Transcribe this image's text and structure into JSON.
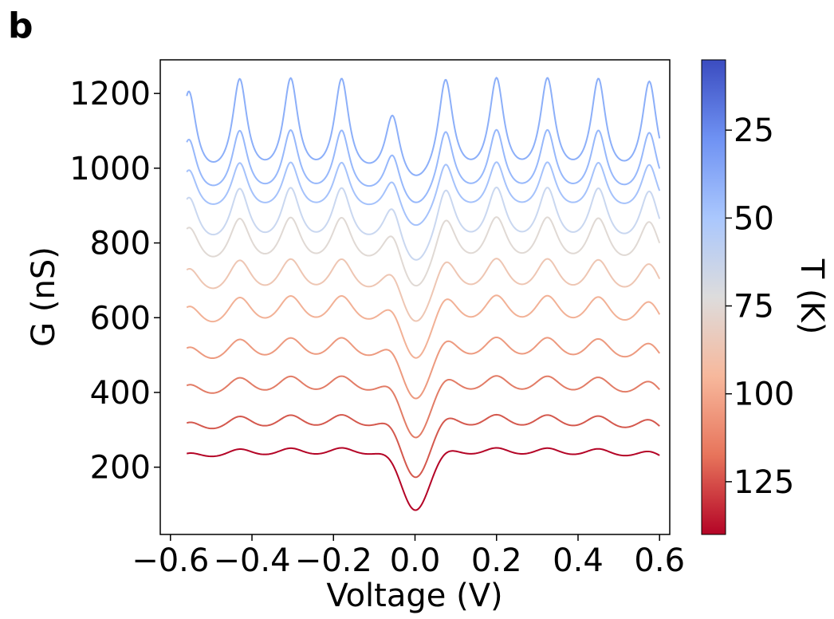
{
  "panel_label": "b",
  "chart_data": {
    "type": "line",
    "xlabel": "Voltage (V)",
    "ylabel": "G (nS)",
    "xlim": [
      -0.625,
      0.625
    ],
    "ylim": [
      20,
      1290
    ],
    "x_ticks": [
      -0.6,
      -0.4,
      -0.2,
      0.0,
      0.2,
      0.4,
      0.6
    ],
    "x_tick_labels": [
      "−0.6",
      "−0.4",
      "−0.2",
      "0.0",
      "0.2",
      "0.4",
      "0.6"
    ],
    "y_ticks": [
      200,
      400,
      600,
      800,
      1000,
      1200
    ],
    "y_tick_labels": [
      "200",
      "400",
      "600",
      "800",
      "1000",
      "1200"
    ],
    "x_range": [
      -0.56,
      0.6
    ],
    "peak_positions": [
      -0.555,
      -0.43,
      -0.305,
      -0.18,
      -0.055,
      0.075,
      0.2,
      0.325,
      0.45,
      0.575
    ],
    "series": [
      {
        "temperature_K": 5,
        "baseline": 955,
        "peak_height": 265,
        "width": 0.022,
        "color": "#8caff9"
      },
      {
        "temperature_K": 13,
        "baseline": 905,
        "peak_height": 180,
        "width": 0.024,
        "color": "#97b8fb"
      },
      {
        "temperature_K": 25,
        "baseline": 860,
        "peak_height": 140,
        "width": 0.026,
        "color": "#a5c2fb"
      },
      {
        "temperature_K": 45,
        "baseline": 760,
        "peak_height": 165,
        "width": 0.029,
        "color": "#c9d7f0"
      },
      {
        "temperature_K": 60,
        "baseline": 690,
        "peak_height": 150,
        "width": 0.034,
        "color": "#e0d9d4"
      },
      {
        "temperature_K": 75,
        "baseline": 600,
        "peak_height": 125,
        "width": 0.04,
        "color": "#eec6b3"
      },
      {
        "temperature_K": 90,
        "baseline": 500,
        "peak_height": 120,
        "width": 0.045,
        "color": "#f2b196"
      },
      {
        "temperature_K": 102,
        "baseline": 410,
        "peak_height": 100,
        "width": 0.048,
        "color": "#ed9a7f"
      },
      {
        "temperature_K": 115,
        "baseline": 325,
        "peak_height": 85,
        "width": 0.05,
        "color": "#e27c66"
      },
      {
        "temperature_K": 125,
        "baseline": 240,
        "peak_height": 70,
        "width": 0.052,
        "color": "#d4584d"
      },
      {
        "temperature_K": 138,
        "baseline": 185,
        "peak_height": 45,
        "width": 0.055,
        "color": "#b40426"
      }
    ]
  },
  "colorbar": {
    "label": "T (K)",
    "range": [
      5,
      140
    ],
    "ticks": [
      25,
      50,
      75,
      100,
      125
    ],
    "tick_labels": [
      "25",
      "50",
      "75",
      "100",
      "125"
    ],
    "colormap": "coolwarm",
    "colors": [
      "#3b4cc0",
      "#6f92f3",
      "#aac7fd",
      "#dddcdc",
      "#f7b89c",
      "#e7745b",
      "#b40426"
    ]
  }
}
